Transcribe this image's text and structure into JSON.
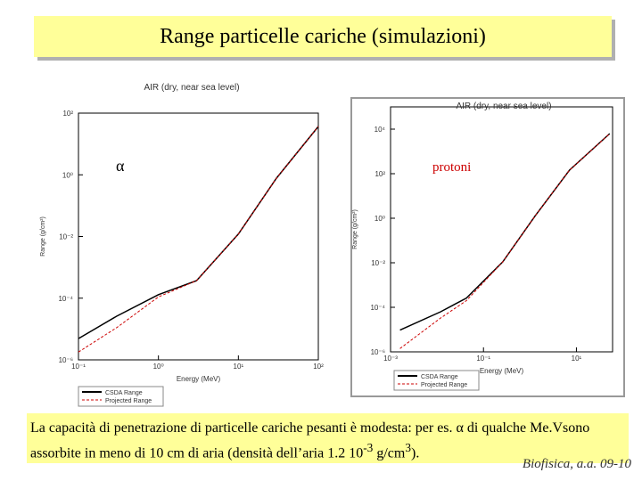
{
  "title": "Range particelle cariche (simulazioni)",
  "caption": {
    "parts": [
      "La capacità di penetrazione di particelle cariche pesanti è modesta: per es. α di qualche Me.Vsono assorbite in meno di 10 cm di aria (densità dell’aria 1.2 10",
      "-3",
      " g/cm",
      "3",
      ")."
    ]
  },
  "footer": "Biofisica, a.a. 09-10",
  "chart_data": [
    {
      "type": "line",
      "title": "AIR (dry, near sea level)",
      "annotation": "α",
      "x_label": "Energy (MeV)",
      "y_label": "Range (g/cm²)",
      "log_x": true,
      "log_y": true,
      "x": [
        0.1,
        0.3,
        1,
        3,
        10,
        30,
        100
      ],
      "series": [
        {
          "name": "CSDA Range",
          "color": "#000000",
          "dashed": false,
          "values": [
            4.9e-06,
            2.6e-05,
            0.00013,
            0.00037,
            0.012,
            0.78,
            37
          ]
        },
        {
          "name": "Projected Range",
          "color": "#cc0000",
          "dashed": true,
          "values": [
            1.8e-06,
            1.1e-05,
            0.00011,
            0.00037,
            0.012,
            0.78,
            37
          ]
        }
      ],
      "xlim": [
        0.1,
        100
      ],
      "xticks": [
        {
          "value": 0.1,
          "label": "10⁻¹"
        },
        {
          "value": 1,
          "label": "10⁰"
        },
        {
          "value": 10,
          "label": "10¹"
        },
        {
          "value": 100,
          "label": "10²"
        }
      ],
      "ylim": [
        1e-06,
        100
      ],
      "yticks": [
        {
          "value": 1e-06,
          "label": "10⁻⁶"
        },
        {
          "value": 0.0001,
          "label": "10⁻⁴"
        },
        {
          "value": 0.01,
          "label": "10⁻²"
        },
        {
          "value": 1,
          "label": "10⁰"
        },
        {
          "value": 100,
          "label": "10²"
        }
      ]
    },
    {
      "type": "line",
      "title": "AIR (dry, near sea level)",
      "annotation": "protoni",
      "x_label": "Energy (MeV)",
      "y_label": "Range (g/cm²)",
      "log_x": true,
      "log_y": true,
      "x": [
        0.0016,
        0.012,
        0.043,
        0.26,
        1.3,
        7.1,
        52
      ],
      "series": [
        {
          "name": "CSDA Range",
          "color": "#000000",
          "dashed": false,
          "values": [
            9.5e-06,
            6.3e-05,
            0.00026,
            0.011,
            1.3,
            145,
            6300
          ]
        },
        {
          "name": "Projected Range",
          "color": "#cc0000",
          "dashed": true,
          "values": [
            1.4e-06,
            3.3e-05,
            0.0002,
            0.011,
            1.3,
            145,
            6300
          ]
        }
      ],
      "xlim": [
        0.001,
        60
      ],
      "xticks": [
        {
          "value": 0.001,
          "label": "10⁻³"
        },
        {
          "value": 0.1,
          "label": "10⁻¹"
        },
        {
          "value": 10,
          "label": "10¹"
        }
      ],
      "ylim": [
        1e-06,
        100000
      ],
      "yticks": [
        {
          "value": 1e-06,
          "label": "10⁻⁶"
        },
        {
          "value": 0.0001,
          "label": "10⁻⁴"
        },
        {
          "value": 0.01,
          "label": "10⁻²"
        },
        {
          "value": 1,
          "label": "10⁰"
        },
        {
          "value": 100,
          "label": "10²"
        },
        {
          "value": 10000,
          "label": "10⁴"
        }
      ]
    }
  ]
}
